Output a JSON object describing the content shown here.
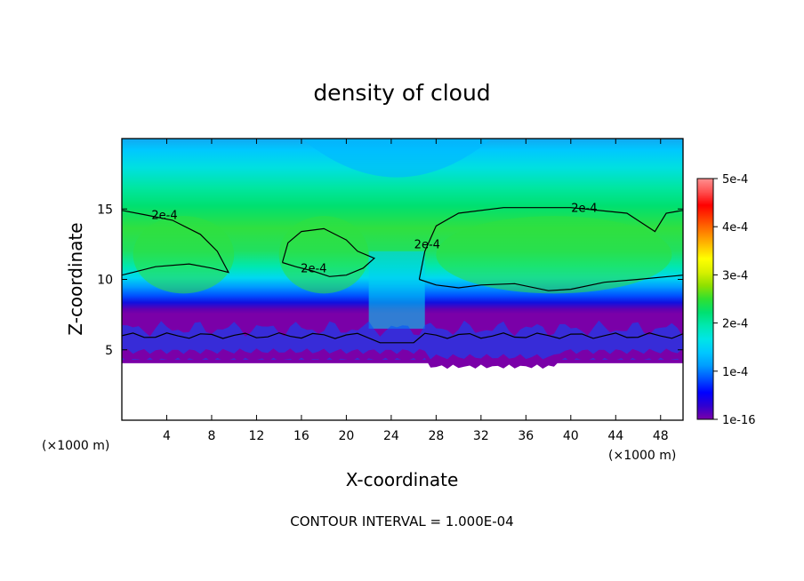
{
  "chart_data": {
    "type": "heatmap",
    "title": "density of cloud",
    "xlabel": "X-coordinate",
    "ylabel": "Z-coordinate",
    "x_unit": "(×1000 m)",
    "y_unit": "(×1000 m)",
    "xlim": [
      0,
      50
    ],
    "ylim": [
      0,
      20
    ],
    "x_ticks": [
      "4",
      "8",
      "12",
      "16",
      "20",
      "24",
      "28",
      "32",
      "36",
      "40",
      "44",
      "48"
    ],
    "x_tick_values": [
      4,
      8,
      12,
      16,
      20,
      24,
      28,
      32,
      36,
      40,
      44,
      48
    ],
    "y_ticks": [
      "5",
      "10",
      "15"
    ],
    "y_tick_values": [
      5,
      10,
      15
    ],
    "colorbar": {
      "min": 0,
      "max": 0.0005,
      "tick_labels": [
        "1e-16",
        "1e-4",
        "2e-4",
        "3e-4",
        "4e-4",
        "5e-4"
      ],
      "tick_values": [
        0,
        0.0001,
        0.0002,
        0.0003,
        0.0004,
        0.0005
      ],
      "colors": [
        "#7a00a8",
        "#3000d0",
        "#0000ff",
        "#0050ff",
        "#009cff",
        "#00c8ff",
        "#00e6e6",
        "#00e8b0",
        "#00e070",
        "#30e030",
        "#90e000",
        "#d8f000",
        "#ffff00",
        "#ffc000",
        "#ff8000",
        "#ff4000",
        "#ff0000",
        "#ff5050",
        "#ff9090"
      ]
    },
    "contour_labels": [
      {
        "text": "2e-4",
        "x": 3.8,
        "z": 14.3
      },
      {
        "text": "2e-4",
        "x": 17.1,
        "z": 10.5
      },
      {
        "text": "2e-4",
        "x": 27.2,
        "z": 12.2
      },
      {
        "text": "2e-4",
        "x": 41.2,
        "z": 14.8
      }
    ],
    "annotation": "CONTOUR INTERVAL = 1.000E-04",
    "description_fields": {
      "cloud_base_z": 4.3,
      "dense_band_z": [
        9,
        14.5
      ],
      "low_region_x": [
        22,
        27
      ]
    }
  }
}
